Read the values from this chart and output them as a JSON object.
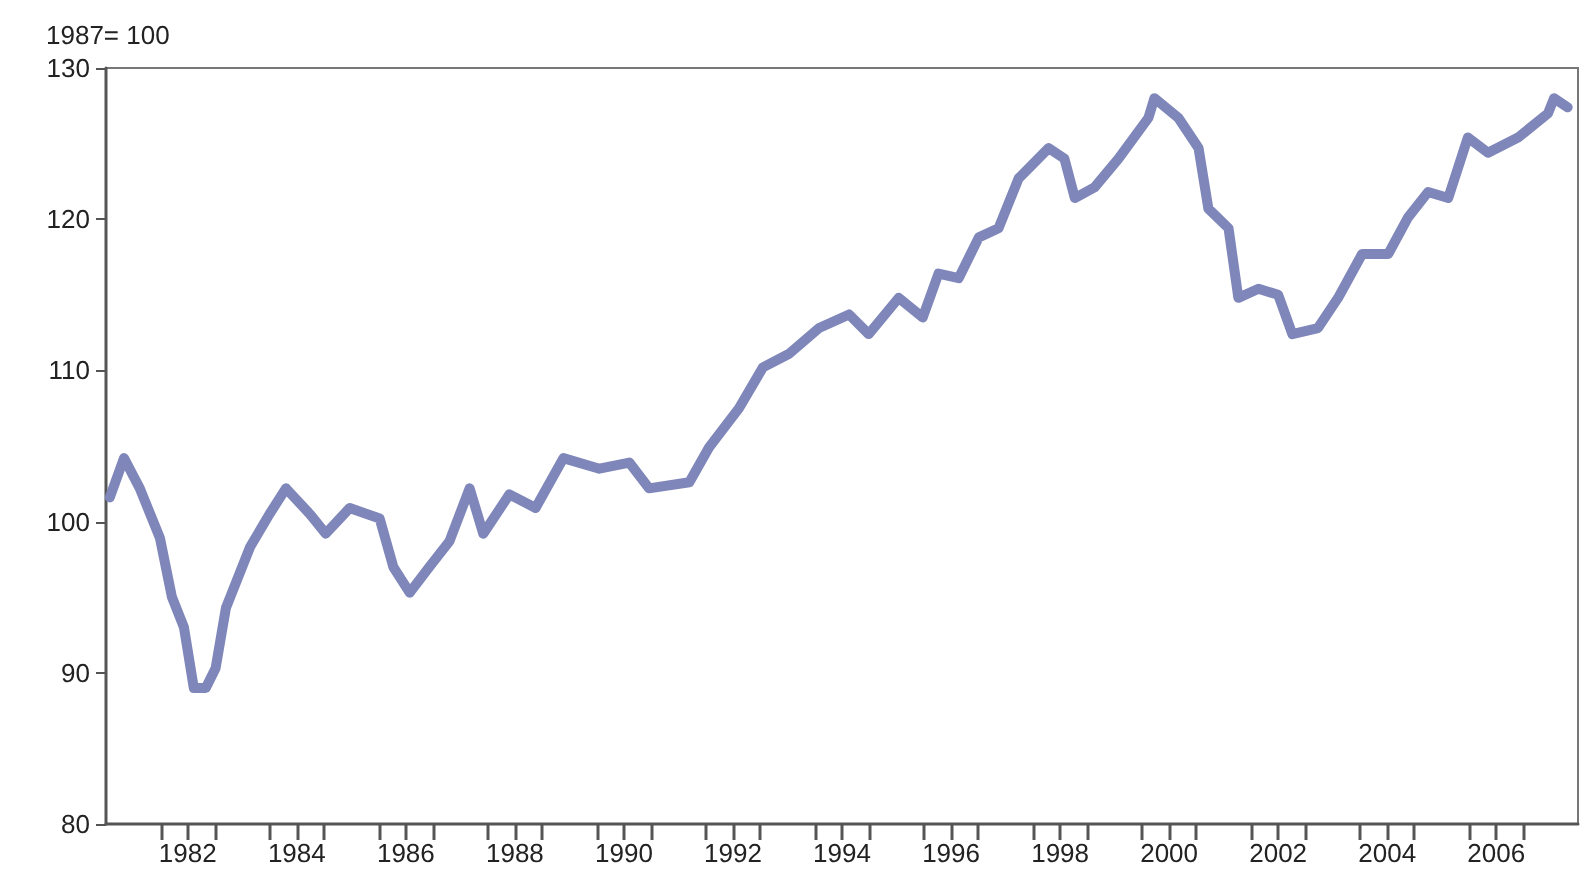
{
  "chart_data": {
    "type": "line",
    "ylabel": "1987= 100",
    "x": [
      1981.07,
      1981.33,
      1981.62,
      1981.99,
      1982.21,
      1982.43,
      1982.61,
      1982.83,
      1983.01,
      1983.2,
      1983.64,
      1984.0,
      1984.3,
      1984.74,
      1985.03,
      1985.47,
      1986.02,
      1986.27,
      1986.57,
      1986.93,
      1987.3,
      1987.67,
      1987.92,
      1988.4,
      1988.88,
      1989.39,
      1990.05,
      1990.6,
      1990.96,
      1991.7,
      1992.06,
      1992.61,
      1993.05,
      1993.53,
      1994.08,
      1994.63,
      1994.99,
      1995.54,
      1995.98,
      1996.27,
      1996.64,
      1997.01,
      1997.37,
      1997.74,
      1998.29,
      1998.58,
      1998.77,
      1999.13,
      1999.57,
      2000.12,
      2000.23,
      2000.67,
      2001.04,
      2001.22,
      2001.59,
      2001.77,
      2002.14,
      2002.5,
      2002.76,
      2003.23,
      2003.6,
      2004.04,
      2004.52,
      2004.88,
      2005.25,
      2005.62,
      2005.98,
      2006.35,
      2006.9,
      2007.45,
      2007.56,
      2007.81
    ],
    "series": [
      {
        "color": "#7f86b9",
        "values": [
          101.6,
          104.2,
          102.2,
          98.9,
          95,
          93,
          89,
          89,
          90.3,
          94.3,
          98.3,
          100.5,
          102.2,
          100.5,
          99.2,
          100.9,
          100.2,
          97,
          95.3,
          97,
          98.7,
          102.2,
          99.2,
          101.8,
          100.9,
          104.2,
          103.5,
          103.9,
          102.2,
          102.6,
          104.9,
          107.5,
          110.2,
          111.1,
          112.8,
          113.7,
          112.4,
          114.8,
          113.5,
          116.4,
          116.1,
          118.8,
          119.4,
          122.7,
          124.7,
          124,
          121.4,
          122.1,
          124,
          126.7,
          128,
          126.7,
          124.7,
          120.7,
          119.4,
          114.8,
          115.4,
          115,
          112.4,
          112.8,
          114.8,
          117.7,
          117.7,
          120.1,
          121.8,
          121.4,
          125.4,
          124.4,
          125.4,
          127,
          128,
          127.4
        ]
      }
    ],
    "xlim": [
      1981,
      2008
    ],
    "xticks": [
      {
        "value": 1982,
        "label": null
      },
      {
        "value": 1982.5,
        "label": "1982"
      },
      {
        "value": 1983,
        "label": null
      },
      {
        "value": 1984,
        "label": null
      },
      {
        "value": 1984.5,
        "label": "1984"
      },
      {
        "value": 1985,
        "label": null
      },
      {
        "value": 1986,
        "label": null
      },
      {
        "value": 1986.5,
        "label": "1986"
      },
      {
        "value": 1987,
        "label": null
      },
      {
        "value": 1988,
        "label": null
      },
      {
        "value": 1988.5,
        "label": "1988"
      },
      {
        "value": 1989,
        "label": null
      },
      {
        "value": 1990,
        "label": null
      },
      {
        "value": 1990.5,
        "label": "1990"
      },
      {
        "value": 1991,
        "label": null
      },
      {
        "value": 1992,
        "label": null
      },
      {
        "value": 1992.5,
        "label": "1992"
      },
      {
        "value": 1993,
        "label": null
      },
      {
        "value": 1994,
        "label": null
      },
      {
        "value": 1994.5,
        "label": "1994"
      },
      {
        "value": 1995,
        "label": null
      },
      {
        "value": 1996,
        "label": null
      },
      {
        "value": 1996.5,
        "label": "1996"
      },
      {
        "value": 1997,
        "label": null
      },
      {
        "value": 1998,
        "label": null
      },
      {
        "value": 1998.5,
        "label": "1998"
      },
      {
        "value": 1999,
        "label": null
      },
      {
        "value": 2000,
        "label": null
      },
      {
        "value": 2000.5,
        "label": "2000"
      },
      {
        "value": 2001,
        "label": null
      },
      {
        "value": 2002,
        "label": null
      },
      {
        "value": 2002.5,
        "label": "2002"
      },
      {
        "value": 2003,
        "label": null
      },
      {
        "value": 2004,
        "label": null
      },
      {
        "value": 2004.5,
        "label": "2004"
      },
      {
        "value": 2005,
        "label": null
      },
      {
        "value": 2006,
        "label": null
      },
      {
        "value": 2006.5,
        "label": "2006"
      },
      {
        "value": 2007,
        "label": null
      }
    ],
    "ylim": [
      80,
      130
    ],
    "yticks": [
      80,
      90,
      100,
      110,
      120,
      130
    ],
    "grid": false,
    "marker": "none",
    "line_style": "solid"
  }
}
